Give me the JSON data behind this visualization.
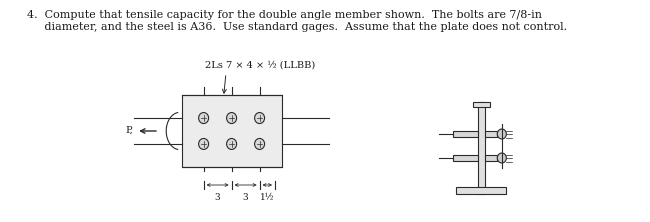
{
  "title_line1": "4.  Compute that tensile capacity for the double angle member shown.  The bolts are 7/8-in",
  "title_line2": "     diameter, and the steel is A36.  Use standard gages.  Assume that the plate does not control.",
  "label_angle": "2Ls 7 × 4 × ½ (LLBB)",
  "label_P": "P,",
  "dim1": "3",
  "dim2": "3",
  "dim3": "1½",
  "bg_color": "#ffffff",
  "line_color": "#2a2a2a",
  "text_color": "#1a1a1a",
  "font_size_title": 8.0,
  "font_size_label": 7.0,
  "font_size_dim": 6.5
}
